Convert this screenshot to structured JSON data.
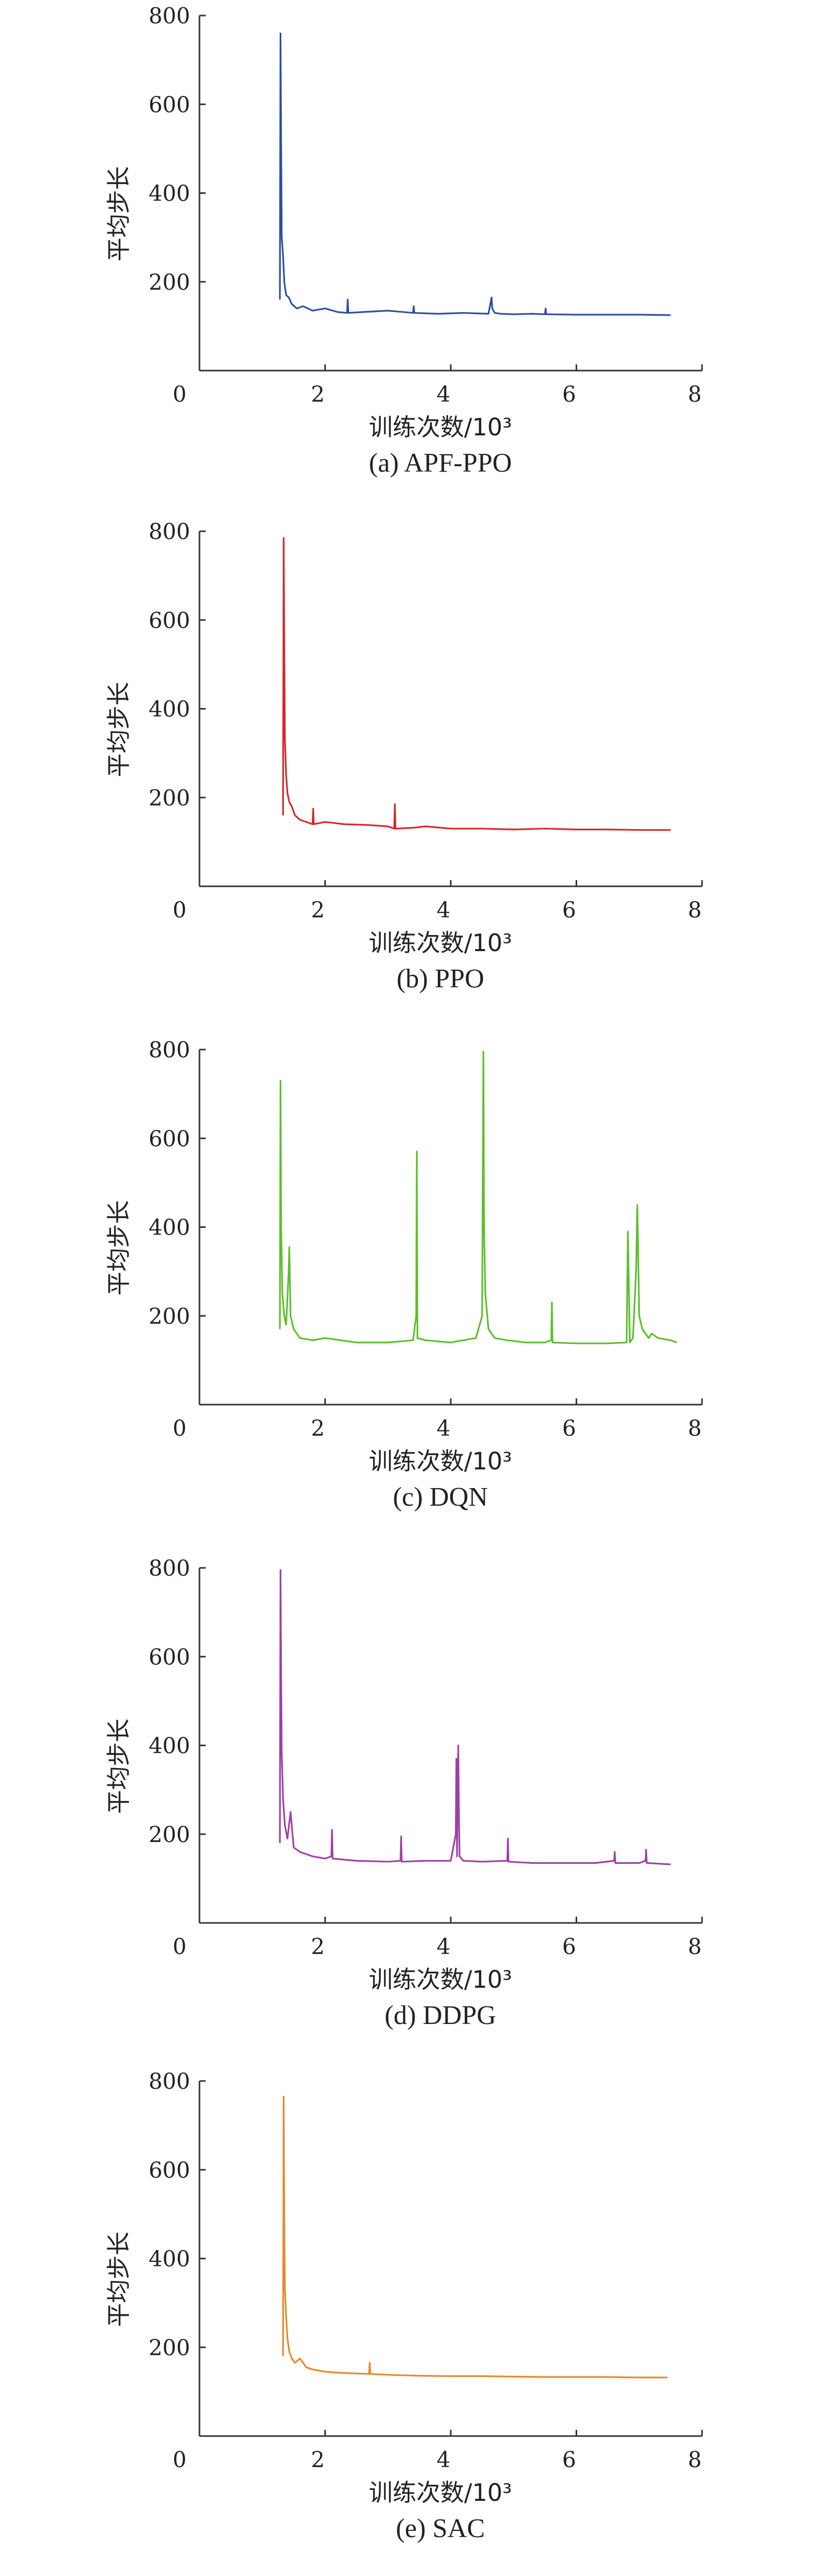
{
  "chart_data": [
    {
      "type": "line",
      "caption": "(a) APF-PPO",
      "xlabel": "训练次数/10³",
      "ylabel": "平均步长",
      "xlim": [
        0,
        8
      ],
      "ylim": [
        0,
        800
      ],
      "xticks": [
        0,
        2,
        4,
        6,
        8
      ],
      "yticks": [
        200,
        400,
        600,
        800
      ],
      "color": "#2a4fa3",
      "series": [
        {
          "x": [
            1.28,
            1.29,
            1.3,
            1.31,
            1.33,
            1.35,
            1.38,
            1.42,
            1.47,
            1.55,
            1.65,
            1.8,
            2.0,
            2.2,
            2.35,
            2.36,
            2.37,
            2.6,
            3.0,
            3.4,
            3.41,
            3.42,
            3.8,
            4.2,
            4.6,
            4.65,
            4.66,
            4.7,
            4.8,
            5.0,
            5.3,
            5.5,
            5.51,
            5.52,
            6.0,
            6.5,
            7.0,
            7.5
          ],
          "y": [
            160,
            760,
            520,
            300,
            260,
            200,
            170,
            165,
            150,
            140,
            145,
            135,
            140,
            132,
            130,
            160,
            130,
            132,
            135,
            130,
            145,
            130,
            128,
            130,
            128,
            165,
            140,
            130,
            128,
            127,
            128,
            127,
            140,
            127,
            126,
            126,
            126,
            125
          ]
        }
      ]
    },
    {
      "type": "line",
      "caption": "(b) PPO",
      "xlabel": "训练次数/10³",
      "ylabel": "平均步长",
      "xlim": [
        0,
        8
      ],
      "ylim": [
        0,
        800
      ],
      "xticks": [
        0,
        2,
        4,
        6,
        8
      ],
      "yticks": [
        200,
        400,
        600,
        800
      ],
      "color": "#d62728",
      "series": [
        {
          "x": [
            1.33,
            1.34,
            1.35,
            1.36,
            1.38,
            1.4,
            1.43,
            1.47,
            1.52,
            1.6,
            1.7,
            1.8,
            1.81,
            1.82,
            2.0,
            2.3,
            2.7,
            3.0,
            3.1,
            3.11,
            3.12,
            3.4,
            3.6,
            4.0,
            4.5,
            5.0,
            5.5,
            6.0,
            6.5,
            7.0,
            7.5
          ],
          "y": [
            160,
            785,
            540,
            330,
            250,
            210,
            190,
            180,
            160,
            150,
            145,
            140,
            175,
            140,
            145,
            140,
            138,
            135,
            130,
            185,
            130,
            132,
            135,
            130,
            130,
            128,
            130,
            128,
            128,
            127,
            127
          ]
        }
      ]
    },
    {
      "type": "line",
      "caption": "(c) DQN",
      "xlabel": "训练次数/10³",
      "ylabel": "平均步长",
      "xlim": [
        0,
        8
      ],
      "ylim": [
        0,
        800
      ],
      "xticks": [
        0,
        2,
        4,
        6,
        8
      ],
      "yticks": [
        200,
        400,
        600,
        800
      ],
      "color": "#5cbf2a",
      "series": [
        {
          "x": [
            1.28,
            1.29,
            1.3,
            1.32,
            1.35,
            1.38,
            1.42,
            1.43,
            1.45,
            1.5,
            1.6,
            1.8,
            2.0,
            2.5,
            3.0,
            3.4,
            3.45,
            3.46,
            3.47,
            3.6,
            4.0,
            4.4,
            4.5,
            4.52,
            4.53,
            4.55,
            4.6,
            4.7,
            4.9,
            5.2,
            5.5,
            5.6,
            5.61,
            5.62,
            6.0,
            6.5,
            6.8,
            6.82,
            6.85,
            6.9,
            6.95,
            6.97,
            7.0,
            7.05,
            7.15,
            7.2,
            7.3,
            7.5,
            7.6
          ],
          "y": [
            170,
            730,
            400,
            250,
            200,
            180,
            300,
            355,
            200,
            170,
            150,
            145,
            150,
            140,
            140,
            145,
            200,
            570,
            150,
            145,
            140,
            150,
            200,
            795,
            400,
            250,
            170,
            150,
            145,
            140,
            140,
            145,
            230,
            140,
            138,
            138,
            140,
            390,
            140,
            150,
            300,
            450,
            200,
            170,
            150,
            160,
            150,
            145,
            140
          ]
        }
      ]
    },
    {
      "type": "line",
      "caption": "(d) DDPG",
      "xlabel": "训练次数/10³",
      "ylabel": "平均步长",
      "xlim": [
        0,
        8
      ],
      "ylim": [
        0,
        800
      ],
      "xticks": [
        0,
        2,
        4,
        6,
        8
      ],
      "yticks": [
        200,
        400,
        600,
        800
      ],
      "color": "#9e3fa6",
      "series": [
        {
          "x": [
            1.28,
            1.29,
            1.3,
            1.31,
            1.33,
            1.36,
            1.4,
            1.45,
            1.5,
            1.6,
            1.8,
            2.0,
            2.1,
            2.11,
            2.12,
            2.5,
            3.0,
            3.2,
            3.21,
            3.22,
            3.6,
            4.0,
            4.08,
            4.09,
            4.1,
            4.12,
            4.13,
            4.14,
            4.2,
            4.5,
            4.9,
            4.91,
            4.92,
            5.3,
            5.8,
            6.3,
            6.6,
            6.61,
            6.62,
            7.0,
            7.1,
            7.11,
            7.12,
            7.5
          ],
          "y": [
            180,
            795,
            560,
            380,
            280,
            220,
            190,
            250,
            170,
            160,
            150,
            145,
            150,
            210,
            145,
            140,
            138,
            140,
            195,
            138,
            140,
            140,
            200,
            370,
            150,
            400,
            250,
            150,
            140,
            138,
            140,
            190,
            138,
            135,
            135,
            135,
            140,
            160,
            135,
            135,
            140,
            165,
            135,
            132
          ]
        }
      ]
    },
    {
      "type": "line",
      "caption": "(e) SAC",
      "xlabel": "训练次数/10³",
      "ylabel": "平均步长",
      "xlim": [
        0,
        8
      ],
      "ylim": [
        0,
        800
      ],
      "xticks": [
        0,
        2,
        4,
        6,
        8
      ],
      "yticks": [
        200,
        400,
        600,
        800
      ],
      "color": "#e8882a",
      "series": [
        {
          "x": [
            1.33,
            1.34,
            1.35,
            1.36,
            1.38,
            1.4,
            1.43,
            1.47,
            1.52,
            1.6,
            1.7,
            1.8,
            2.0,
            2.3,
            2.7,
            2.71,
            2.72,
            3.0,
            3.5,
            4.0,
            4.5,
            5.0,
            5.5,
            6.0,
            6.5,
            7.0,
            7.45
          ],
          "y": [
            180,
            765,
            470,
            330,
            270,
            220,
            190,
            175,
            165,
            175,
            155,
            150,
            145,
            142,
            140,
            165,
            140,
            138,
            136,
            135,
            135,
            134,
            133,
            133,
            133,
            132,
            132
          ]
        }
      ]
    }
  ]
}
